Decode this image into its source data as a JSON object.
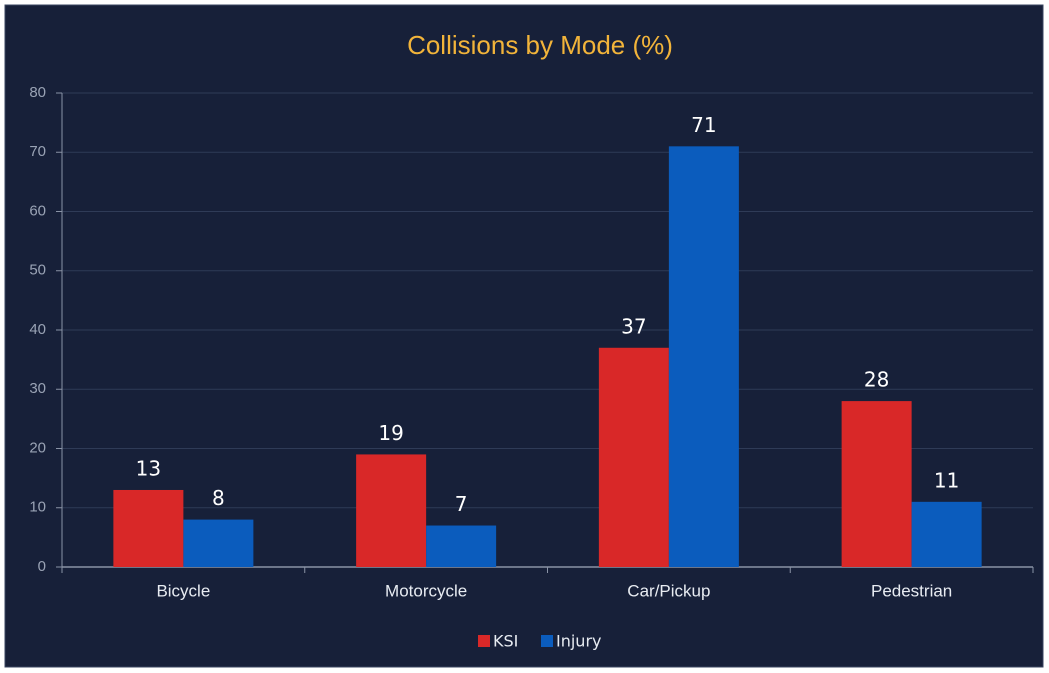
{
  "chart_data": {
    "type": "bar",
    "title": "Collisions by Mode (%)",
    "categories": [
      "Bicycle",
      "Motorcycle",
      "Car/Pickup",
      "Pedestrian"
    ],
    "series": [
      {
        "name": "KSI",
        "color": "#d92828",
        "values": [
          13,
          19,
          37,
          28
        ]
      },
      {
        "name": "Injury",
        "color": "#0b5cbd",
        "values": [
          8,
          7,
          71,
          11
        ]
      }
    ],
    "ylim": [
      0,
      80
    ],
    "yticks": [
      0,
      10,
      20,
      30,
      40,
      50,
      60,
      70,
      80
    ],
    "grid": true,
    "legend": "bottom"
  }
}
